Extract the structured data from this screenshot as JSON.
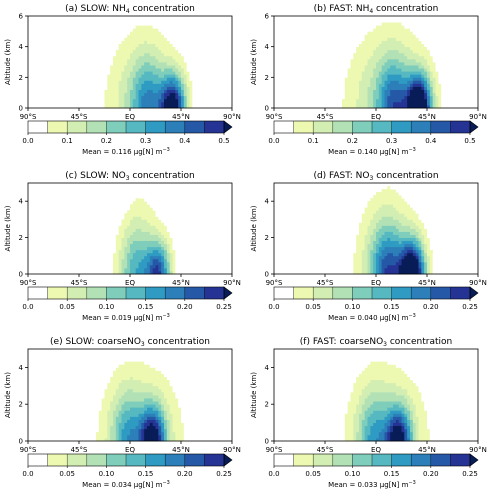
{
  "figure": {
    "y_label": "Altitude (km)",
    "mean_unit": "μg[N] m",
    "mean_unit_exp": "−3"
  },
  "colormap": [
    "#ffffff",
    "#edf8b1",
    "#d3eeb3",
    "#b2e1b6",
    "#7fcdbb",
    "#56b9c1",
    "#2f9bc3",
    "#2c7fb8",
    "#2559a7",
    "#253494",
    "#081d58"
  ],
  "chart_data": [
    {
      "type": "contour",
      "panel": "(a) SLOW",
      "title_prefix": "(a) SLOW: NH",
      "title_sub": "4",
      "title_suffix": " concentration",
      "x_ticks": [
        "90°S",
        "45°S",
        "EQ",
        "45°N",
        "90°N"
      ],
      "xlim": [
        -90,
        90
      ],
      "y_ticks": [
        "0",
        "2",
        "4",
        "6"
      ],
      "ylim": [
        0,
        6
      ],
      "levels": [
        0,
        0.05,
        0.1,
        0.15,
        0.2,
        0.25,
        0.3,
        0.35,
        0.4,
        0.45,
        0.5
      ],
      "colorbar_ticks": [
        "0.0",
        "0.1",
        "0.2",
        "0.3",
        "0.4",
        "0.5"
      ],
      "mean_label": "Mean = 0.116",
      "mean_value": 0.116,
      "peak": 0.52,
      "peak_lat": 38,
      "spread": 1.0
    },
    {
      "type": "contour",
      "panel": "(b) FAST",
      "title_prefix": "(b) FAST: NH",
      "title_sub": "4",
      "title_suffix": " concentration",
      "x_ticks": [
        "90°S",
        "45°S",
        "EQ",
        "45°N",
        "90°N"
      ],
      "xlim": [
        -90,
        90
      ],
      "y_ticks": [
        "0",
        "2",
        "4",
        "6"
      ],
      "ylim": [
        0,
        6
      ],
      "levels": [
        0,
        0.05,
        0.1,
        0.15,
        0.2,
        0.25,
        0.3,
        0.35,
        0.4,
        0.45,
        0.5
      ],
      "colorbar_ticks": [
        "0.0",
        "0.1",
        "0.2",
        "0.3",
        "0.4",
        "0.5"
      ],
      "mean_label": "Mean = 0.140",
      "mean_value": 0.14,
      "peak": 0.6,
      "peak_lat": 38,
      "spread": 1.15
    },
    {
      "type": "contour",
      "panel": "(c) SLOW",
      "title_prefix": "(c) SLOW: NO",
      "title_sub": "3",
      "title_suffix": " concentration",
      "x_ticks": [
        "90°S",
        "45°S",
        "EQ",
        "45°N",
        "90°N"
      ],
      "xlim": [
        -90,
        90
      ],
      "y_ticks": [
        "0",
        "2",
        "4"
      ],
      "ylim": [
        0,
        5
      ],
      "levels": [
        0,
        0.025,
        0.05,
        0.075,
        0.1,
        0.125,
        0.15,
        0.175,
        0.2,
        0.225,
        0.25
      ],
      "colorbar_ticks": [
        "0.0",
        "0.05",
        "0.10",
        "0.15",
        "0.20",
        "0.25"
      ],
      "mean_label": "Mean = 0.019",
      "mean_value": 0.019,
      "peak": 0.2,
      "peak_lat": 25,
      "spread": 0.55
    },
    {
      "type": "contour",
      "panel": "(d) FAST",
      "title_prefix": "(d) FAST: NO",
      "title_sub": "3",
      "title_suffix": " concentration",
      "x_ticks": [
        "90°S",
        "45°S",
        "EQ",
        "45°N",
        "90°N"
      ],
      "xlim": [
        -90,
        90
      ],
      "y_ticks": [
        "0",
        "2",
        "4"
      ],
      "ylim": [
        0,
        5
      ],
      "levels": [
        0,
        0.025,
        0.05,
        0.075,
        0.1,
        0.125,
        0.15,
        0.175,
        0.2,
        0.225,
        0.25
      ],
      "colorbar_ticks": [
        "0.0",
        "0.05",
        "0.10",
        "0.15",
        "0.20",
        "0.25"
      ],
      "mean_label": "Mean = 0.040",
      "mean_value": 0.04,
      "peak": 0.3,
      "peak_lat": 32,
      "spread": 0.85
    },
    {
      "type": "contour",
      "panel": "(e) SLOW",
      "title_prefix": "(e) SLOW: coarseNO",
      "title_sub": "3",
      "title_suffix": " concentration",
      "x_ticks": [
        "90°S",
        "45°S",
        "EQ",
        "45°N",
        "90°N"
      ],
      "xlim": [
        -90,
        90
      ],
      "y_ticks": [
        "0",
        "2",
        "4"
      ],
      "ylim": [
        0,
        5
      ],
      "levels": [
        0,
        0.025,
        0.05,
        0.075,
        0.1,
        0.125,
        0.15,
        0.175,
        0.2,
        0.225,
        0.25
      ],
      "colorbar_ticks": [
        "0.0",
        "0.05",
        "0.10",
        "0.15",
        "0.20",
        "0.25"
      ],
      "mean_label": "Mean = 0.034",
      "mean_value": 0.034,
      "peak": 0.24,
      "peak_lat": 20,
      "spread": 1.2
    },
    {
      "type": "contour",
      "panel": "(f) FAST",
      "title_prefix": "(f) FAST: coarseNO",
      "title_sub": "3",
      "title_suffix": " concentration",
      "x_ticks": [
        "90°S",
        "45°S",
        "EQ",
        "45°N",
        "90°N"
      ],
      "xlim": [
        -90,
        90
      ],
      "y_ticks": [
        "0",
        "2",
        "4"
      ],
      "ylim": [
        0,
        5
      ],
      "levels": [
        0,
        0.025,
        0.05,
        0.075,
        0.1,
        0.125,
        0.15,
        0.175,
        0.2,
        0.225,
        0.25
      ],
      "colorbar_ticks": [
        "0.0",
        "0.05",
        "0.10",
        "0.15",
        "0.20",
        "0.25"
      ],
      "mean_label": "Mean = 0.033",
      "mean_value": 0.033,
      "peak": 0.23,
      "peak_lat": 20,
      "spread": 1.2
    }
  ]
}
